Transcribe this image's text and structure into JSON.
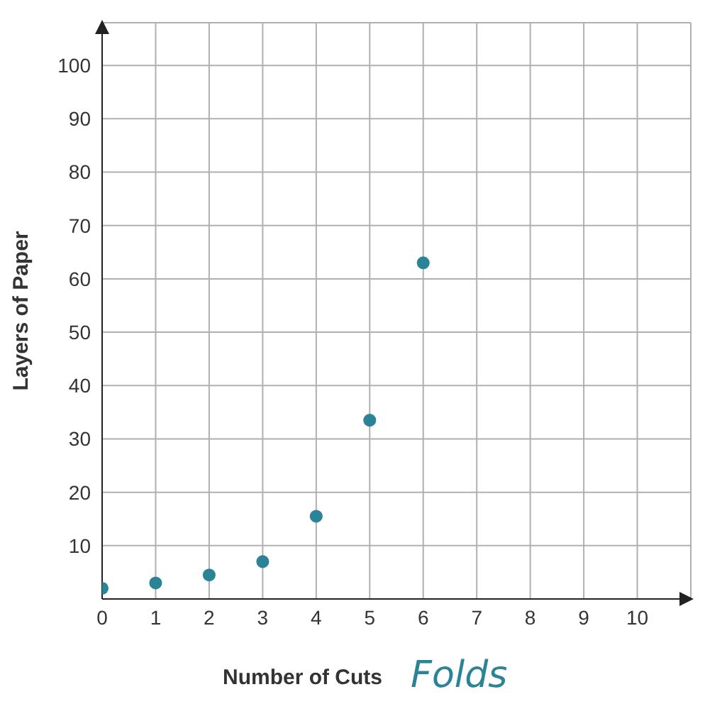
{
  "chart_data": {
    "type": "scatter",
    "xlabel": "Number of Cuts",
    "ylabel": "Layers of Paper",
    "annotations": [
      "Folds"
    ],
    "x": [
      0,
      1,
      2,
      3,
      4,
      5,
      6
    ],
    "series": [
      {
        "color": "#2a8496",
        "values": [
          2,
          3,
          4.5,
          7,
          15.5,
          33.5,
          63
        ]
      }
    ],
    "xlim": [
      0,
      11
    ],
    "ylim": [
      0,
      108
    ],
    "xticks": [
      0,
      1,
      2,
      3,
      4,
      5,
      6,
      7,
      8,
      9,
      10
    ],
    "yticks": [
      10,
      20,
      30,
      40,
      50,
      60,
      70,
      80,
      90,
      100
    ],
    "grid": true,
    "marker": "circle"
  }
}
